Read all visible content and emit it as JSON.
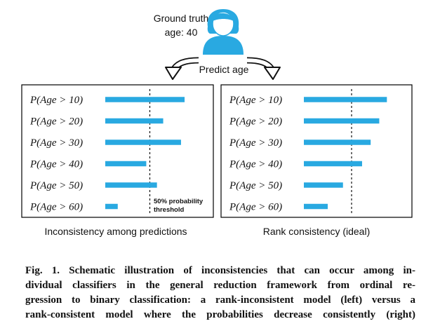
{
  "header": {
    "ground_truth_line1": "Ground truth",
    "ground_truth_line2": "age: 40",
    "predict_label": "Predict age"
  },
  "threshold_label_line1": "50% probability",
  "threshold_label_line2": "threshold",
  "colors": {
    "bar": "#29a9e1",
    "avatar": "#29a9e1",
    "frame": "#000000",
    "text": "#111111"
  },
  "icons": {
    "avatar": "person-avatar-icon",
    "arrows": "curved-arrow-icon"
  },
  "chart_data": [
    {
      "type": "bar",
      "orientation": "horizontal",
      "caption": "Inconsistency among predictions",
      "categories": [
        "P(Age > 10)",
        "P(Age > 20)",
        "P(Age > 30)",
        "P(Age > 40)",
        "P(Age > 50)",
        "P(Age > 60)"
      ],
      "values": [
        0.89,
        0.65,
        0.85,
        0.46,
        0.58,
        0.14
      ],
      "xlim": [
        0,
        1
      ],
      "threshold": 0.5,
      "grid": false
    },
    {
      "type": "bar",
      "orientation": "horizontal",
      "caption": "Rank consistency (ideal)",
      "categories": [
        "P(Age > 10)",
        "P(Age > 20)",
        "P(Age > 30)",
        "P(Age > 40)",
        "P(Age > 50)",
        "P(Age > 60)"
      ],
      "values": [
        0.87,
        0.79,
        0.7,
        0.61,
        0.41,
        0.25
      ],
      "xlim": [
        0,
        1
      ],
      "threshold": 0.5,
      "grid": false
    }
  ],
  "figure_caption": {
    "lines": [
      "Fig. 1. Schematic illustration of inconsistencies that can occur among in-",
      "dividual classifiers in the general reduction framework from ordinal re-",
      "gression to binary classification: a rank-inconsistent model (left) versus a",
      "rank-consistent model where the probabilities decrease consistently (right)"
    ]
  }
}
